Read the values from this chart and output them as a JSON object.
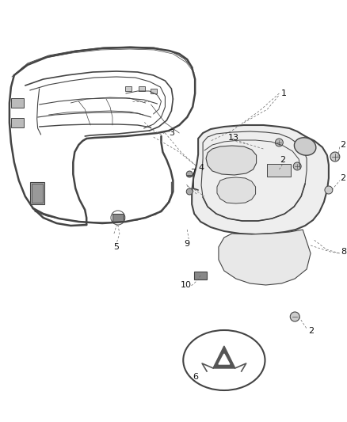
{
  "bg": "#ffffff",
  "lc": "#444444",
  "lc2": "#666666",
  "fig_w": 4.38,
  "fig_h": 5.33,
  "dpi": 100,
  "label_fs": 7,
  "label_color": "#111111"
}
